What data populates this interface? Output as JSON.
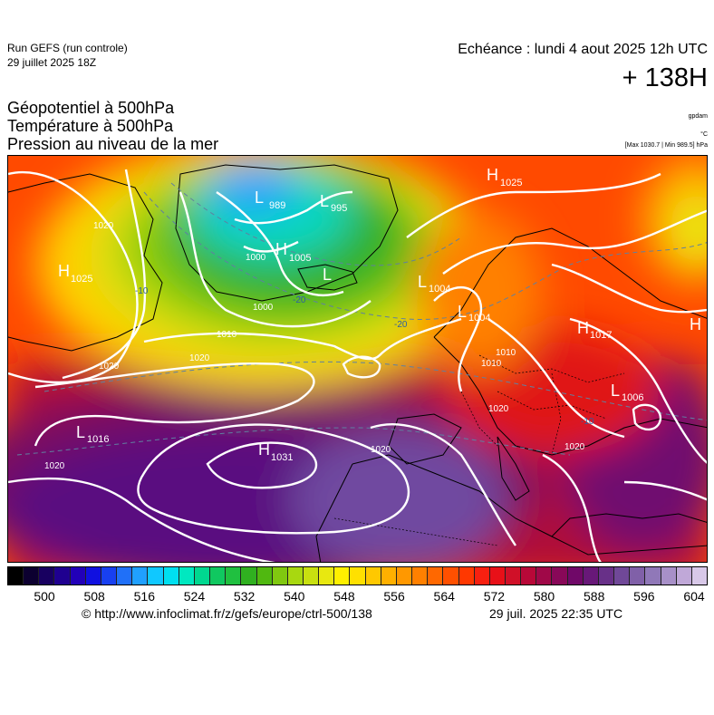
{
  "header": {
    "run_title": "Run GEFS (run controle)",
    "run_date": "29 juillet 2025 18Z",
    "valid_time": "Echéance : lundi 4 aout 2025 12h UTC",
    "lead_time": "+ 138H",
    "params": [
      "Géopotentiel à 500hPa",
      "Température à 500hPa",
      "Pression au niveau de la mer"
    ],
    "unit_geopotential": "gpdam",
    "unit_temperature": "°C",
    "pressure_extremes": "[Max 1030.7 | Min 989.5] hPa"
  },
  "map": {
    "pressure_centers": [
      {
        "type": "L",
        "value": "989"
      },
      {
        "type": "L",
        "value": "995"
      },
      {
        "type": "H",
        "value": "1005"
      },
      {
        "type": "L",
        "value": ""
      },
      {
        "type": "H",
        "value": "1025"
      },
      {
        "type": "H",
        "value": "1025"
      },
      {
        "type": "L",
        "value": "1004"
      },
      {
        "type": "L",
        "value": "1004"
      },
      {
        "type": "H",
        "value": "1017"
      },
      {
        "type": "H",
        "value": ""
      },
      {
        "type": "L",
        "value": "1006"
      },
      {
        "type": "L",
        "value": "1016"
      },
      {
        "type": "H",
        "value": "1031"
      }
    ],
    "isobar_labels": [
      "1020",
      "1020",
      "1000",
      "1000",
      "1010",
      "1020",
      "1020",
      "1020",
      "1020",
      "1010",
      "1020",
      "1010"
    ],
    "isotherm_labels": [
      "-20",
      "-20",
      "-10",
      "-10"
    ]
  },
  "colorbar": {
    "tick_labels": [
      "500",
      "508",
      "516",
      "524",
      "532",
      "540",
      "548",
      "556",
      "564",
      "572",
      "580",
      "588",
      "596",
      "604"
    ],
    "colors": [
      "#000000",
      "#0c0030",
      "#180060",
      "#1f0090",
      "#2200b8",
      "#1010e0",
      "#1840f0",
      "#2070f8",
      "#20a0ff",
      "#10c8ff",
      "#00e0f0",
      "#00e8c0",
      "#00d890",
      "#10c860",
      "#20c040",
      "#30b020",
      "#50b810",
      "#80c810",
      "#a8d810",
      "#c8e010",
      "#e8e810",
      "#fff000",
      "#ffe000",
      "#ffc800",
      "#ffb000",
      "#ff9800",
      "#ff8000",
      "#ff6800",
      "#ff5000",
      "#ff3800",
      "#f82010",
      "#e81018",
      "#d01028",
      "#b80838",
      "#a00848",
      "#880858",
      "#700868",
      "#681878",
      "#683088",
      "#704898",
      "#8060a8",
      "#9078b8",
      "#a890c8",
      "#c0a8d8",
      "#d8c8e8"
    ]
  },
  "footer": {
    "copyright": "© http://www.infoclimat.fr/z/gefs/europe/ctrl-500/138",
    "generated": "29 juil. 2025 22:35 UTC"
  }
}
